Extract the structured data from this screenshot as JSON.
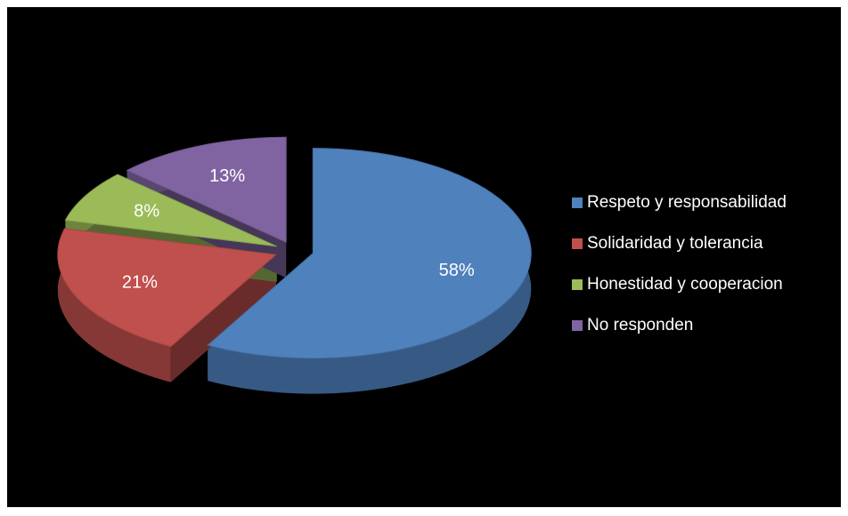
{
  "chart_data": {
    "type": "pie",
    "categories": [
      "Respeto y responsabilidad",
      "Solidaridad y tolerancia",
      "Honestidad y cooperacion",
      "No responden"
    ],
    "values": [
      58,
      21,
      8,
      13
    ],
    "value_labels": [
      "58%",
      "21%",
      "8%",
      "13%"
    ],
    "colors": [
      "#4f81bd",
      "#c0504d",
      "#9bbb59",
      "#8064a2"
    ],
    "legend": "right"
  }
}
